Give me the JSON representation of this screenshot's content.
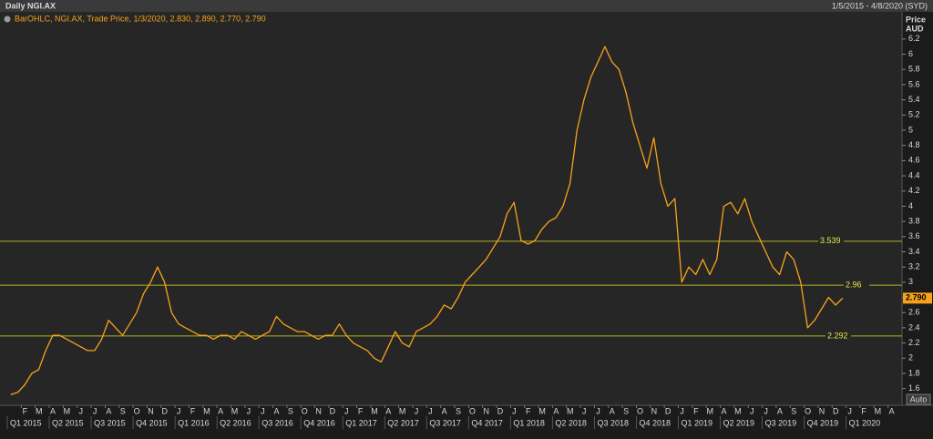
{
  "chart_data": {
    "type": "line",
    "title": "Daily NGI.AX",
    "subtitle": "1/5/2015 - 4/8/2020 (SYD)",
    "y_axis_label": "Price",
    "y_axis_unit": "AUD",
    "button": "Auto",
    "categories": [
      null,
      null,
      "F",
      null,
      "M",
      null,
      "A",
      null,
      "M",
      null,
      "J",
      null,
      "J",
      null,
      "A",
      null,
      "S",
      null,
      "O",
      null,
      "N",
      null,
      "D",
      null,
      "J",
      null,
      "F",
      null,
      "M",
      null,
      "A",
      null,
      "M",
      null,
      "J",
      null,
      "J",
      null,
      "A",
      null,
      "S",
      null,
      "O",
      null,
      "N",
      null,
      "D",
      null,
      "J",
      null,
      "F",
      null,
      "M",
      null,
      "A",
      null,
      "M",
      null,
      "J",
      null,
      "J",
      null,
      "A",
      null,
      "S",
      null,
      "O",
      null,
      "N",
      null,
      "D",
      null,
      "J",
      null,
      "F",
      null,
      "M",
      null,
      "A",
      null,
      "M",
      null,
      "J",
      null,
      "J",
      null,
      "A",
      null,
      "S",
      null,
      "O",
      null,
      "N",
      null,
      "D",
      null,
      "J",
      null,
      "F",
      null,
      "M",
      null,
      "A",
      null,
      "M",
      null,
      "J",
      null,
      "J",
      null,
      "A",
      null,
      "S",
      null,
      "O",
      null,
      "N",
      null,
      "D",
      null,
      "J",
      null,
      "F",
      null,
      "M",
      null,
      "A",
      null
    ],
    "quarters": [
      "Q1 2015",
      "Q2 2015",
      "Q3 2015",
      "Q4 2015",
      "Q1 2016",
      "Q2 2016",
      "Q3 2016",
      "Q4 2016",
      "Q1 2017",
      "Q2 2017",
      "Q3 2017",
      "Q4 2017",
      "Q1 2018",
      "Q2 2018",
      "Q3 2018",
      "Q4 2018",
      "Q1 2019",
      "Q2 2019",
      "Q3 2019",
      "Q4 2019",
      "Q1 2020"
    ],
    "series": [
      {
        "name": "BarOHLC, NGI.AX, Trade Price, 1/3/2020, 2.830, 2.890, 2.770, 2.790",
        "color": "#f7a21b",
        "values": [
          1.52,
          1.55,
          1.65,
          1.8,
          1.85,
          2.1,
          2.3,
          2.3,
          2.25,
          2.2,
          2.15,
          2.1,
          2.1,
          2.25,
          2.5,
          2.4,
          2.3,
          2.45,
          2.6,
          2.85,
          3.0,
          3.2,
          3.0,
          2.6,
          2.45,
          2.4,
          2.35,
          2.3,
          2.3,
          2.25,
          2.3,
          2.3,
          2.25,
          2.35,
          2.3,
          2.25,
          2.3,
          2.35,
          2.55,
          2.45,
          2.4,
          2.35,
          2.35,
          2.3,
          2.25,
          2.3,
          2.3,
          2.45,
          2.3,
          2.2,
          2.15,
          2.1,
          2.0,
          1.95,
          2.15,
          2.35,
          2.2,
          2.15,
          2.35,
          2.4,
          2.45,
          2.55,
          2.7,
          2.65,
          2.8,
          3.0,
          3.1,
          3.2,
          3.3,
          3.45,
          3.6,
          3.9,
          4.05,
          3.55,
          3.5,
          3.55,
          3.7,
          3.8,
          3.85,
          4.0,
          4.3,
          5.0,
          5.4,
          5.7,
          5.9,
          6.1,
          5.9,
          5.8,
          5.5,
          5.1,
          4.8,
          4.5,
          4.9,
          4.3,
          4.0,
          4.1,
          3.0,
          3.2,
          3.1,
          3.3,
          3.1,
          3.3,
          4.0,
          4.05,
          3.9,
          4.1,
          3.8,
          3.6,
          3.4,
          3.2,
          3.1,
          3.4,
          3.3,
          3.0,
          2.4,
          2.5,
          2.65,
          2.8,
          2.7,
          2.79,
          null,
          null,
          null,
          null,
          null,
          null,
          null,
          null
        ]
      }
    ],
    "ylim": [
      1.44,
      6.39
    ],
    "yticks": [
      1.6,
      1.8,
      2,
      2.2,
      2.4,
      2.6,
      2.8,
      3,
      3.2,
      3.4,
      3.6,
      3.8,
      4,
      4.2,
      4.4,
      4.6,
      4.8,
      5,
      5.2,
      5.4,
      5.6,
      5.8,
      6,
      6.2
    ],
    "reference_lines": [
      3.539,
      2.96,
      2.292
    ],
    "reference_color": "#b5b51a",
    "last_price": {
      "value": 2.79,
      "label": "2.790"
    }
  }
}
